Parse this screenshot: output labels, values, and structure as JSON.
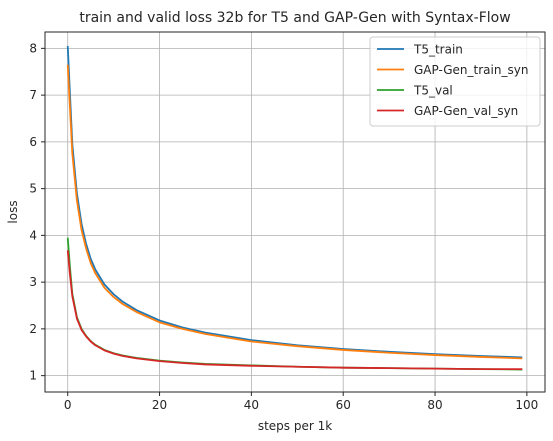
{
  "chart_data": {
    "type": "line",
    "title": "train and valid loss 32b for T5 and GAP-Gen with Syntax-Flow",
    "xlabel": "steps per 1k",
    "ylabel": "loss",
    "xlim": [
      -4.95,
      103.95
    ],
    "ylim": [
      0.65,
      8.35
    ],
    "xticks": [
      0,
      20,
      40,
      60,
      80,
      100
    ],
    "yticks": [
      1,
      2,
      3,
      4,
      5,
      6,
      7,
      8
    ],
    "grid": true,
    "legend_position": "top-right",
    "series": [
      {
        "name": "T5_train",
        "color": "#1f77b4",
        "x": [
          0,
          0.5,
          1,
          2,
          3,
          4,
          5,
          6,
          8,
          10,
          12,
          15,
          20,
          25,
          30,
          40,
          50,
          60,
          70,
          80,
          90,
          99
        ],
        "y": [
          8.05,
          7.0,
          5.95,
          4.9,
          4.25,
          3.82,
          3.5,
          3.27,
          2.95,
          2.74,
          2.58,
          2.4,
          2.18,
          2.03,
          1.92,
          1.76,
          1.65,
          1.57,
          1.51,
          1.46,
          1.42,
          1.39
        ]
      },
      {
        "name": "GAP-Gen_train_syn",
        "color": "#ff7f0e",
        "x": [
          0,
          0.5,
          1,
          2,
          3,
          4,
          5,
          6,
          8,
          10,
          12,
          15,
          20,
          25,
          30,
          40,
          50,
          60,
          70,
          80,
          90,
          99
        ],
        "y": [
          7.65,
          6.7,
          5.75,
          4.75,
          4.12,
          3.72,
          3.41,
          3.19,
          2.88,
          2.68,
          2.53,
          2.36,
          2.14,
          2.0,
          1.89,
          1.73,
          1.63,
          1.55,
          1.49,
          1.44,
          1.4,
          1.37
        ]
      },
      {
        "name": "T5_val",
        "color": "#2ca02c",
        "x": [
          0,
          0.5,
          1,
          2,
          3,
          4,
          5,
          6,
          8,
          10,
          12,
          15,
          20,
          25,
          30,
          40,
          50,
          60,
          70,
          80,
          90,
          99
        ],
        "y": [
          3.95,
          3.3,
          2.75,
          2.25,
          2.0,
          1.85,
          1.74,
          1.66,
          1.55,
          1.48,
          1.43,
          1.38,
          1.32,
          1.28,
          1.25,
          1.22,
          1.19,
          1.17,
          1.16,
          1.15,
          1.14,
          1.13
        ]
      },
      {
        "name": "GAP-Gen_val_syn",
        "color": "#d62728",
        "x": [
          0,
          0.5,
          1,
          2,
          3,
          4,
          5,
          6,
          8,
          10,
          12,
          15,
          20,
          25,
          30,
          40,
          50,
          60,
          70,
          80,
          90,
          99
        ],
        "y": [
          3.68,
          3.15,
          2.7,
          2.22,
          1.98,
          1.84,
          1.73,
          1.65,
          1.54,
          1.47,
          1.42,
          1.37,
          1.31,
          1.27,
          1.24,
          1.21,
          1.19,
          1.17,
          1.16,
          1.15,
          1.14,
          1.14
        ]
      }
    ]
  }
}
